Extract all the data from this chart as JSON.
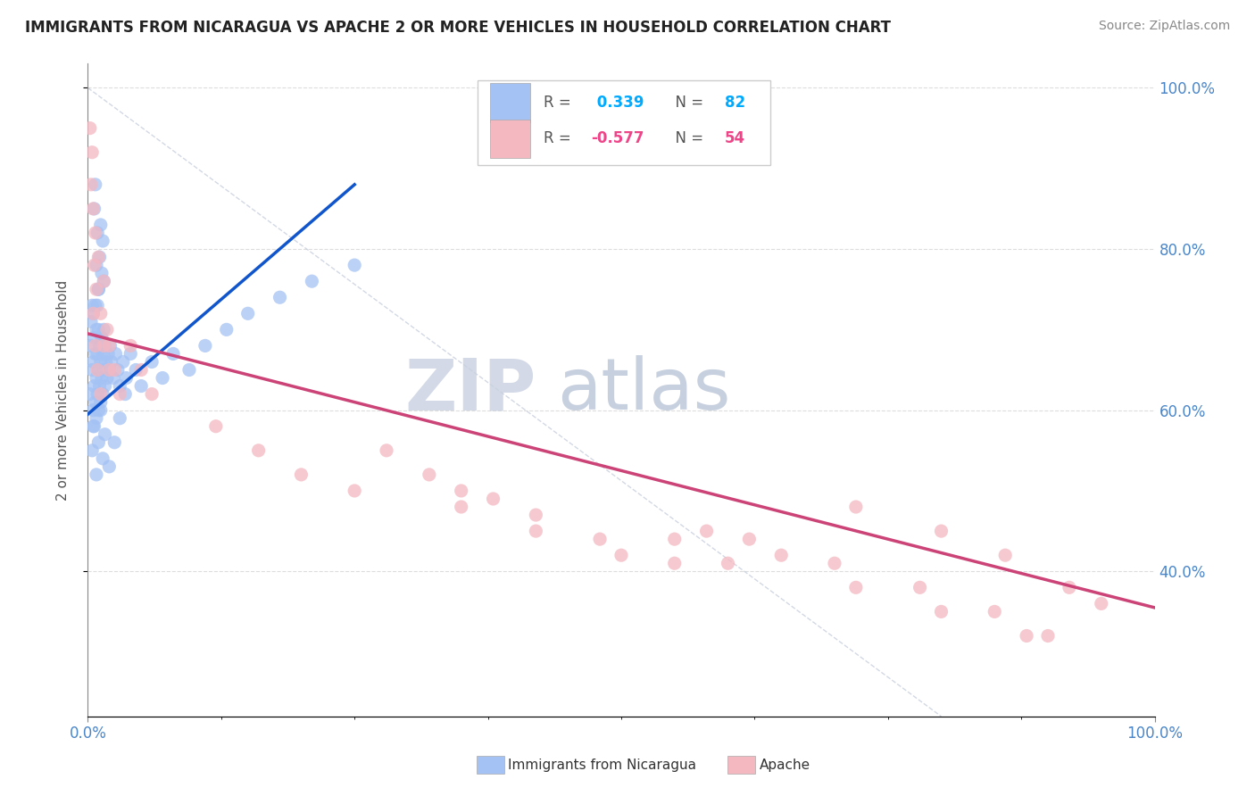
{
  "title": "IMMIGRANTS FROM NICARAGUA VS APACHE 2 OR MORE VEHICLES IN HOUSEHOLD CORRELATION CHART",
  "source": "Source: ZipAtlas.com",
  "ylabel": "2 or more Vehicles in Household",
  "xmin": 0.0,
  "xmax": 1.0,
  "ymin": 0.22,
  "ymax": 1.03,
  "ytick_vals": [
    0.4,
    0.6,
    0.8,
    1.0
  ],
  "ytick_labels": [
    "40.0%",
    "60.0%",
    "80.0%",
    "100.0%"
  ],
  "R_blue": 0.339,
  "N_blue": 82,
  "R_pink": -0.577,
  "N_pink": 54,
  "blue_color": "#a4c2f4",
  "pink_color": "#f4b8c1",
  "blue_line_color": "#1155cc",
  "pink_line_color": "#cc4477",
  "watermark_zip_color": "#c8d0e0",
  "watermark_atlas_color": "#b8c4d8",
  "blue_scatter_x": [
    0.002,
    0.003,
    0.003,
    0.004,
    0.004,
    0.005,
    0.005,
    0.005,
    0.006,
    0.006,
    0.006,
    0.007,
    0.007,
    0.007,
    0.008,
    0.008,
    0.008,
    0.009,
    0.009,
    0.009,
    0.01,
    0.01,
    0.01,
    0.01,
    0.011,
    0.011,
    0.012,
    0.012,
    0.013,
    0.013,
    0.014,
    0.014,
    0.015,
    0.015,
    0.016,
    0.016,
    0.017,
    0.018,
    0.019,
    0.02,
    0.021,
    0.022,
    0.024,
    0.026,
    0.028,
    0.03,
    0.033,
    0.036,
    0.04,
    0.045,
    0.05,
    0.06,
    0.07,
    0.08,
    0.095,
    0.11,
    0.13,
    0.15,
    0.18,
    0.21,
    0.25,
    0.006,
    0.007,
    0.008,
    0.009,
    0.01,
    0.011,
    0.012,
    0.013,
    0.014,
    0.015,
    0.004,
    0.005,
    0.008,
    0.01,
    0.012,
    0.014,
    0.016,
    0.02,
    0.025,
    0.03,
    0.035
  ],
  "blue_scatter_y": [
    0.62,
    0.68,
    0.71,
    0.65,
    0.73,
    0.6,
    0.66,
    0.72,
    0.58,
    0.63,
    0.69,
    0.61,
    0.67,
    0.73,
    0.59,
    0.64,
    0.7,
    0.62,
    0.67,
    0.73,
    0.6,
    0.65,
    0.7,
    0.75,
    0.63,
    0.68,
    0.61,
    0.66,
    0.64,
    0.69,
    0.62,
    0.67,
    0.65,
    0.7,
    0.63,
    0.68,
    0.66,
    0.64,
    0.67,
    0.65,
    0.68,
    0.66,
    0.64,
    0.67,
    0.65,
    0.63,
    0.66,
    0.64,
    0.67,
    0.65,
    0.63,
    0.66,
    0.64,
    0.67,
    0.65,
    0.68,
    0.7,
    0.72,
    0.74,
    0.76,
    0.78,
    0.85,
    0.88,
    0.78,
    0.82,
    0.75,
    0.79,
    0.83,
    0.77,
    0.81,
    0.76,
    0.55,
    0.58,
    0.52,
    0.56,
    0.6,
    0.54,
    0.57,
    0.53,
    0.56,
    0.59,
    0.62
  ],
  "pink_scatter_x": [
    0.002,
    0.003,
    0.004,
    0.005,
    0.006,
    0.007,
    0.008,
    0.01,
    0.012,
    0.015,
    0.018,
    0.02,
    0.025,
    0.03,
    0.04,
    0.05,
    0.06,
    0.005,
    0.007,
    0.009,
    0.012,
    0.015,
    0.02,
    0.35,
    0.42,
    0.5,
    0.58,
    0.65,
    0.72,
    0.8,
    0.86,
    0.92,
    0.95,
    0.35,
    0.42,
    0.48,
    0.55,
    0.62,
    0.7,
    0.78,
    0.85,
    0.9,
    0.28,
    0.32,
    0.38,
    0.55,
    0.6,
    0.72,
    0.8,
    0.88,
    0.12,
    0.16,
    0.2,
    0.25
  ],
  "pink_scatter_y": [
    0.95,
    0.88,
    0.92,
    0.85,
    0.78,
    0.82,
    0.75,
    0.79,
    0.72,
    0.76,
    0.7,
    0.68,
    0.65,
    0.62,
    0.68,
    0.65,
    0.62,
    0.72,
    0.68,
    0.65,
    0.62,
    0.68,
    0.65,
    0.48,
    0.45,
    0.42,
    0.45,
    0.42,
    0.48,
    0.45,
    0.42,
    0.38,
    0.36,
    0.5,
    0.47,
    0.44,
    0.41,
    0.44,
    0.41,
    0.38,
    0.35,
    0.32,
    0.55,
    0.52,
    0.49,
    0.44,
    0.41,
    0.38,
    0.35,
    0.32,
    0.58,
    0.55,
    0.52,
    0.5
  ],
  "blue_line_x": [
    0.0,
    0.25
  ],
  "blue_line_y": [
    0.595,
    0.88
  ],
  "pink_line_x": [
    0.0,
    1.0
  ],
  "pink_line_y": [
    0.695,
    0.355
  ],
  "ref_line_x": [
    0.0,
    0.8
  ],
  "ref_line_y": [
    1.0,
    0.22
  ],
  "grid_color": "#dddddd",
  "grid_linestyle": "--"
}
